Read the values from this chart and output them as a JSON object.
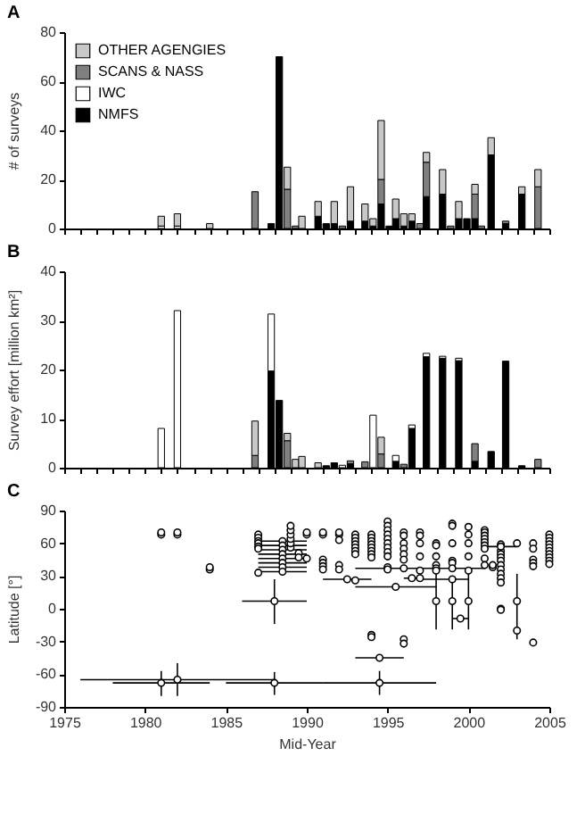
{
  "chart_data": [
    {
      "type": "bar",
      "title": "A",
      "ylabel": "# of surveys",
      "stacked": true,
      "legend": "top left",
      "tick_labels": "y",
      "x": [
        1981,
        1982,
        1984,
        1986.8,
        1987.8,
        1988.3,
        1988.8,
        1989.3,
        1989.7,
        1990.7,
        1991.2,
        1991.7,
        1992.2,
        1992.7,
        1993.6,
        1994.1,
        1994.6,
        1995.1,
        1995.5,
        1996,
        1996.5,
        1997,
        1997.4,
        1998.4,
        1998.9,
        1999.4,
        1999.9,
        2000.4,
        2000.8,
        2001.4,
        2002.3,
        2003.3,
        2004.3
      ],
      "series": [
        {
          "name": "NMFS",
          "color": "#000000",
          "values": [
            null,
            null,
            null,
            null,
            2,
            70,
            null,
            null,
            null,
            5,
            2,
            2,
            null,
            3,
            3,
            1,
            10,
            1,
            4,
            1,
            3,
            null,
            13,
            14,
            null,
            4,
            4,
            4,
            null,
            30,
            2,
            14,
            null
          ]
        },
        {
          "name": "IWC",
          "color": "#ffffff",
          "values": [
            1,
            1,
            null,
            null,
            null,
            null,
            null,
            null,
            null,
            null,
            null,
            null,
            null,
            null,
            null,
            null,
            null,
            null,
            null,
            null,
            null,
            null,
            null,
            null,
            null,
            null,
            null,
            null,
            null,
            null,
            null,
            null,
            null
          ]
        },
        {
          "name": "SCANS & NASS",
          "color": "#808080",
          "values": [
            null,
            null,
            null,
            15,
            null,
            null,
            16,
            1,
            null,
            null,
            null,
            null,
            1,
            null,
            null,
            null,
            10,
            null,
            null,
            null,
            null,
            2,
            14,
            null,
            1,
            null,
            null,
            10,
            1,
            null,
            1,
            null,
            17
          ]
        },
        {
          "name": "OTHER AGENGIES",
          "color": "#c8c8c8",
          "values": [
            4,
            5,
            2,
            null,
            null,
            null,
            9,
            null,
            5,
            6,
            null,
            9,
            null,
            14,
            7,
            3,
            24,
            null,
            8,
            5,
            3,
            null,
            4,
            10,
            null,
            7,
            null,
            4,
            null,
            7,
            null,
            3,
            7
          ]
        }
      ],
      "xlim": [
        1975,
        2005
      ],
      "xticks": [
        {
          "value": 1975,
          "label": null
        },
        {
          "value": 1976,
          "label": null
        },
        {
          "value": 1977,
          "label": null
        },
        {
          "value": 1978,
          "label": null
        },
        {
          "value": 1979,
          "label": null
        },
        {
          "value": 1980,
          "label": null
        },
        {
          "value": 1981,
          "label": null
        },
        {
          "value": 1982,
          "label": null
        },
        {
          "value": 1983,
          "label": null
        },
        {
          "value": 1984,
          "label": null
        },
        {
          "value": 1985,
          "label": null
        },
        {
          "value": 1986,
          "label": null
        },
        {
          "value": 1987,
          "label": null
        },
        {
          "value": 1988,
          "label": null
        },
        {
          "value": 1989,
          "label": null
        },
        {
          "value": 1990,
          "label": null
        },
        {
          "value": 1991,
          "label": null
        },
        {
          "value": 1992,
          "label": null
        },
        {
          "value": 1993,
          "label": null
        },
        {
          "value": 1994,
          "label": null
        },
        {
          "value": 1995,
          "label": null
        },
        {
          "value": 1996,
          "label": null
        },
        {
          "value": 1997,
          "label": null
        },
        {
          "value": 1998,
          "label": null
        },
        {
          "value": 1999,
          "label": null
        },
        {
          "value": 2000,
          "label": null
        },
        {
          "value": 2001,
          "label": null
        },
        {
          "value": 2002,
          "label": null
        },
        {
          "value": 2003,
          "label": null
        },
        {
          "value": 2004,
          "label": null
        },
        {
          "value": 2005,
          "label": null
        }
      ],
      "ylim": [
        0,
        80
      ],
      "yticks": [
        0,
        20,
        40,
        60,
        80
      ]
    },
    {
      "type": "bar",
      "title": "B",
      "ylabel": "Survey effort [million km²]",
      "stacked": true,
      "tick_labels": "y",
      "x": [
        1981,
        1982,
        1984,
        1986.8,
        1987.8,
        1988.3,
        1988.8,
        1989.3,
        1989.7,
        1990.7,
        1991.2,
        1991.7,
        1992.2,
        1992.7,
        1993.6,
        1994.1,
        1994.6,
        1995.1,
        1995.5,
        1996,
        1996.5,
        1997,
        1997.4,
        1998.4,
        1998.9,
        1999.4,
        1999.9,
        2000.4,
        2000.8,
        2001.4,
        2002.3,
        2003.3,
        2004.3
      ],
      "series": [
        {
          "color": "#000000",
          "values": [
            null,
            null,
            null,
            null,
            19.7,
            13.7,
            null,
            null,
            null,
            null,
            0.4,
            1,
            null,
            0.8,
            null,
            null,
            null,
            null,
            1.3,
            null,
            8,
            null,
            22.6,
            22.3,
            null,
            21.8,
            null,
            1.3,
            null,
            3.3,
            21.7,
            0.4,
            null
          ]
        },
        {
          "color": "#ffffff",
          "values": [
            8,
            32,
            null,
            null,
            11.6,
            null,
            null,
            null,
            null,
            null,
            null,
            null,
            0.5,
            null,
            null,
            10.7,
            null,
            null,
            1.2,
            null,
            0.7,
            null,
            0.7,
            0.4,
            null,
            0.5,
            null,
            null,
            null,
            null,
            null,
            null,
            null
          ]
        },
        {
          "color": "#808080",
          "values": [
            null,
            null,
            null,
            2.5,
            null,
            null,
            5.5,
            null,
            null,
            null,
            null,
            null,
            null,
            0.6,
            1.2,
            null,
            2.8,
            null,
            null,
            0.7,
            null,
            null,
            null,
            null,
            null,
            null,
            null,
            3.6,
            null,
            null,
            null,
            null,
            1.7
          ]
        },
        {
          "color": "#c8c8c8",
          "values": [
            null,
            null,
            null,
            7,
            null,
            null,
            1.5,
            1.7,
            2.3,
            1,
            null,
            null,
            null,
            null,
            null,
            null,
            3.4,
            null,
            null,
            null,
            null,
            null,
            null,
            null,
            null,
            null,
            null,
            null,
            null,
            null,
            null,
            null,
            null
          ]
        }
      ],
      "xlim": [
        1975,
        2005
      ],
      "xticks": [
        {
          "value": 1975,
          "label": null
        },
        {
          "value": 1976,
          "label": null
        },
        {
          "value": 1977,
          "label": null
        },
        {
          "value": 1978,
          "label": null
        },
        {
          "value": 1979,
          "label": null
        },
        {
          "value": 1980,
          "label": null
        },
        {
          "value": 1981,
          "label": null
        },
        {
          "value": 1982,
          "label": null
        },
        {
          "value": 1983,
          "label": null
        },
        {
          "value": 1984,
          "label": null
        },
        {
          "value": 1985,
          "label": null
        },
        {
          "value": 1986,
          "label": null
        },
        {
          "value": 1987,
          "label": null
        },
        {
          "value": 1988,
          "label": null
        },
        {
          "value": 1989,
          "label": null
        },
        {
          "value": 1990,
          "label": null
        },
        {
          "value": 1991,
          "label": null
        },
        {
          "value": 1992,
          "label": null
        },
        {
          "value": 1993,
          "label": null
        },
        {
          "value": 1994,
          "label": null
        },
        {
          "value": 1995,
          "label": null
        },
        {
          "value": 1996,
          "label": null
        },
        {
          "value": 1997,
          "label": null
        },
        {
          "value": 1998,
          "label": null
        },
        {
          "value": 1999,
          "label": null
        },
        {
          "value": 2000,
          "label": null
        },
        {
          "value": 2001,
          "label": null
        },
        {
          "value": 2002,
          "label": null
        },
        {
          "value": 2003,
          "label": null
        },
        {
          "value": 2004,
          "label": null
        },
        {
          "value": 2005,
          "label": null
        }
      ],
      "ylim": [
        0,
        40
      ],
      "yticks": [
        0,
        10,
        20,
        30,
        40
      ]
    },
    {
      "type": "scatter",
      "title": "C",
      "xlabel": "Mid-Year",
      "ylabel": "Latitude [°]",
      "marker": "circle",
      "series": [
        {
          "color": "#000000",
          "x": [
            1981,
            1981,
            1982,
            1982,
            1984,
            1984,
            1987,
            1987,
            1987,
            1987,
            1987,
            1987,
            1987,
            1989,
            1989,
            1989,
            1989,
            1989,
            1989,
            1989.5,
            1989.5,
            1990,
            1990,
            1990,
            1991,
            1991,
            1991,
            1991,
            1991,
            1991,
            1992,
            1992,
            1992,
            1992,
            1992,
            1993,
            1993,
            1993,
            1993,
            1993,
            1993,
            1993,
            1993,
            1994,
            1994,
            1994,
            1994,
            1994,
            1994,
            1994,
            1994,
            1994,
            1994,
            1995,
            1995,
            1995,
            1995,
            1995,
            1995,
            1995,
            1995,
            1995,
            1995,
            1995,
            1996,
            1996,
            1996,
            1996,
            1996,
            1996,
            1996,
            1996,
            1997,
            1997,
            1997,
            1997,
            1997,
            1997,
            1998,
            1998,
            1998,
            1998,
            1998,
            1998,
            1999,
            1999,
            1999,
            1999,
            1999,
            1999,
            2000,
            2000,
            2000,
            2000,
            2000,
            2001,
            2001,
            2001,
            2001,
            2001,
            2001,
            2001,
            2001,
            2001,
            2001.5,
            2001.5,
            2002,
            2002,
            2002,
            2002,
            2002,
            2002,
            2002,
            2002,
            2002,
            2002,
            2002,
            2002,
            2003,
            2003,
            2004,
            2004,
            2004,
            2004,
            2004,
            2004,
            2005,
            2005,
            2005,
            2005,
            2005,
            2005,
            2005,
            2005,
            2005,
            2005
          ],
          "values": [
            68,
            70,
            68,
            70,
            36,
            38,
            68,
            65,
            62,
            60,
            57,
            55,
            33,
            56,
            60,
            64,
            68,
            72,
            76,
            51,
            47,
            68,
            70,
            46,
            68,
            70,
            45,
            42,
            39,
            36,
            68,
            70,
            63,
            40,
            36,
            68,
            65,
            62,
            59,
            56,
            53,
            50,
            26,
            68,
            65,
            62,
            59,
            56,
            53,
            50,
            47,
            -24,
            -26,
            80,
            76,
            72,
            68,
            64,
            60,
            56,
            52,
            48,
            38,
            36,
            70,
            67,
            60,
            55,
            50,
            45,
            -28,
            -32,
            70,
            67,
            60,
            48,
            35,
            28,
            60,
            58,
            48,
            40,
            37,
            35,
            78,
            76,
            60,
            44,
            42,
            37,
            75,
            68,
            60,
            48,
            35,
            72,
            70,
            67,
            64,
            61,
            58,
            55,
            46,
            40,
            38,
            40,
            59,
            53,
            50,
            47,
            44,
            40,
            36,
            32,
            28,
            24,
            0,
            -1,
            60,
            -20,
            60,
            55,
            45,
            42,
            39,
            -31,
            68,
            65,
            62,
            59,
            56,
            53,
            50,
            47,
            44,
            41
          ]
        },
        {
          "color": "#000000",
          "x": [
            1981,
            1982,
            1988.5,
            1988.5,
            1988.5,
            1988.5,
            1988.5,
            1988.5,
            1988.5,
            1988.5,
            1988,
            1988,
            1992.5,
            1994.5,
            1994.5,
            1995.5,
            1996,
            1996.5,
            1998,
            1999,
            1999,
            1999.5,
            2000,
            2002,
            2003
          ],
          "values": [
            -68,
            -65,
            62,
            58,
            54,
            50,
            46,
            42,
            38,
            34,
            7,
            -68,
            27,
            -45,
            -68,
            20,
            37,
            28,
            7,
            27,
            7,
            -9,
            7,
            57,
            7
          ],
          "errors": [
            [
              -80,
              -57
            ],
            [
              -80,
              -50
            ],
            null,
            null,
            null,
            null,
            null,
            null,
            null,
            null,
            [
              -14,
              27
            ],
            [
              -79,
              -58
            ],
            null,
            null,
            [
              -79,
              -57
            ],
            null,
            null,
            null,
            [
              -19,
              37
            ],
            null,
            [
              -19,
              30
            ],
            [
              -12,
              -6
            ],
            [
              -19,
              38
            ],
            null,
            [
              -28,
              32
            ]
          ],
          "xerrors": [
            [
              1978,
              1984
            ],
            [
              1976,
              1988
            ],
            [
              1987,
              1990
            ],
            [
              1987,
              1990
            ],
            [
              1987,
              1990
            ],
            [
              1987,
              1990
            ],
            [
              1987,
              1990
            ],
            [
              1987,
              1990
            ],
            [
              1987,
              1990
            ],
            [
              1987,
              1990
            ],
            [
              1986,
              1990
            ],
            [
              1985,
              1991
            ],
            [
              1991,
              1994
            ],
            [
              1993,
              1996
            ],
            [
              1991,
              1998
            ],
            [
              1993,
              1998
            ],
            [
              1993,
              2001
            ],
            [
              1996,
              1997
            ],
            null,
            [
              1997,
              2000
            ],
            null,
            [
              1999,
              2000
            ],
            null,
            [
              2001,
              2003
            ],
            null
          ]
        }
      ],
      "xlim": [
        1975,
        2005
      ],
      "xticks": [
        1975,
        1980,
        1985,
        1990,
        1995,
        2000,
        2005
      ],
      "ylim": [
        -90,
        90
      ],
      "yticks": [
        -90,
        -60,
        -30,
        0,
        30,
        60,
        90
      ]
    }
  ]
}
